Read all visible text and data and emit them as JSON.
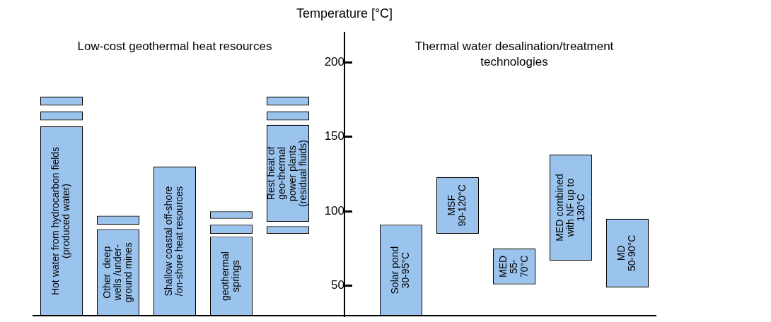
{
  "chart_data": {
    "type": "bar",
    "ylabel": "Temperature [°C]",
    "annotations": [
      "Low-cost geothermal heat resources",
      "Thermal water desalination/treatment\ntechnologies"
    ],
    "categories": [
      "Hot water from hydrocarbon fields\n(produced water)",
      "Other  deep\nwells /under-\nground mines",
      "Shallow coastal off-shore\n/on-shore heat resources",
      "geothermal\nsprings",
      "Rest heat of\ngeo-thermal\npower plants\n(residual fluids)",
      null,
      "Solar pond\n30-95°C",
      "MSF\n90-120°C",
      "MED\n55-\n70°C",
      "MED combined\nwith NF up to\n130°C",
      "MD\n50-90°C"
    ],
    "series": [
      {
        "color": "#9ac3ee",
        "base": [
          30,
          30,
          30,
          30,
          93,
          null,
          30,
          85,
          51,
          67,
          49
        ],
        "values": [
          127,
          58,
          100,
          53,
          65,
          null,
          61,
          38,
          24,
          71,
          46
        ]
      },
      {
        "color": "#9ac3ee",
        "base": [
          161,
          91,
          null,
          85,
          161,
          null,
          null,
          null,
          null,
          null,
          null
        ],
        "values": [
          6,
          6,
          null,
          6,
          6,
          null,
          null,
          null,
          null,
          null,
          null
        ]
      },
      {
        "color": "#9ac3ee",
        "base": [
          171,
          null,
          null,
          95,
          171,
          null,
          null,
          null,
          null,
          null,
          null
        ],
        "values": [
          6,
          null,
          null,
          5,
          6,
          null,
          null,
          null,
          null,
          null,
          null
        ]
      },
      {
        "color": "#9ac3ee",
        "base": [
          null,
          null,
          null,
          null,
          85,
          null,
          null,
          null,
          null,
          null,
          null
        ],
        "values": [
          null,
          null,
          null,
          null,
          5,
          null,
          null,
          null,
          null,
          null,
          null
        ]
      }
    ],
    "ylim": [
      30,
      220
    ],
    "yticks": [
      50,
      100,
      150,
      200
    ]
  }
}
